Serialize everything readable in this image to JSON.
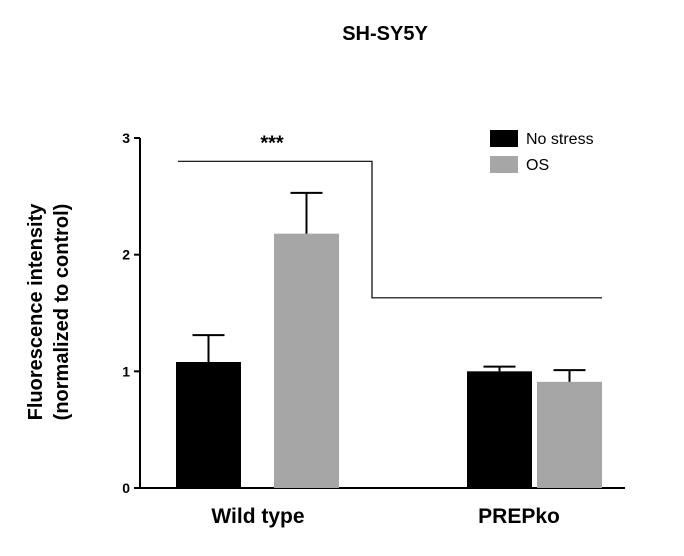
{
  "chart_data": {
    "type": "bar",
    "title": "SH-SY5Y",
    "ylabel_line1": "Fluorescence intensity",
    "ylabel_line2": "(normalized to control)",
    "xlabel": "",
    "ylim": [
      0,
      3
    ],
    "yticks": [
      "0",
      "1",
      "2",
      "3"
    ],
    "categories": [
      "Wild type",
      "PREPko"
    ],
    "series": [
      {
        "name": "No stress",
        "color": "#000000",
        "values": [
          1.08,
          1.0
        ],
        "errors": [
          0.23,
          0.04
        ]
      },
      {
        "name": "OS",
        "color": "#a6a6a6",
        "values": [
          2.18,
          0.91
        ],
        "errors": [
          0.35,
          0.1
        ]
      }
    ],
    "legend_position": "top-right",
    "grid": false,
    "significance": {
      "label": "***",
      "from_category": 0,
      "to_category": 1,
      "from_value": 2.8,
      "to_value": 1.63
    }
  }
}
